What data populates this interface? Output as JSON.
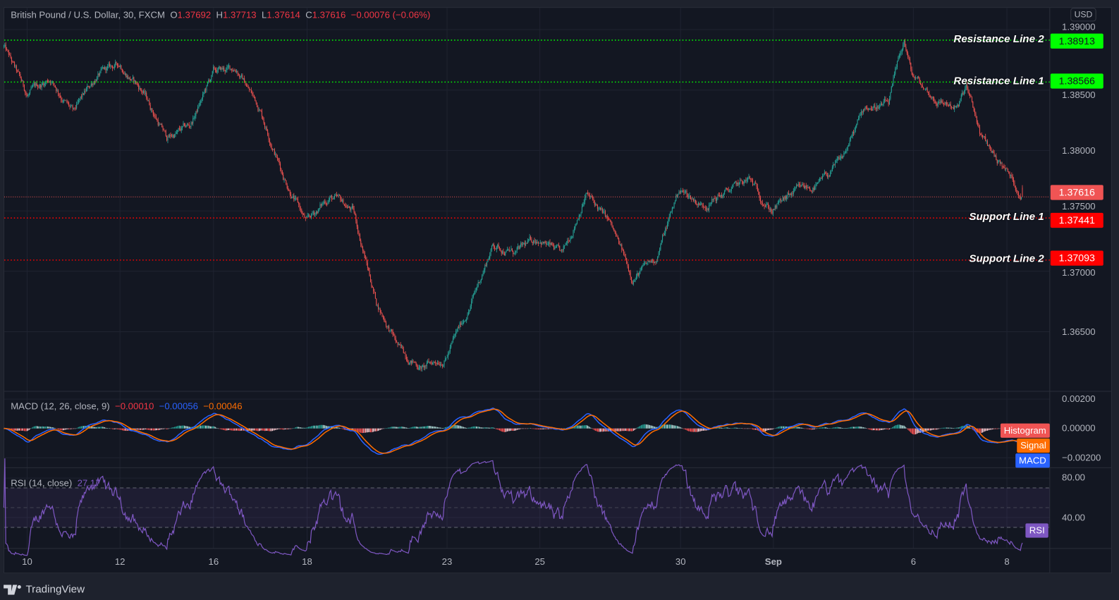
{
  "header": {
    "symbol": "British Pound / U.S. Dollar, 30, FXCM",
    "o_label": "O",
    "o_value": "1.37692",
    "h_label": "H",
    "h_value": "1.37713",
    "l_label": "L",
    "l_value": "1.37614",
    "c_label": "C",
    "c_value": "1.37616",
    "change": "−0.00076 (−0.06%)"
  },
  "currency": "USD",
  "footer": {
    "brand": "TradingView"
  },
  "colors": {
    "up": "#26a69a",
    "down": "#ef5350",
    "resistance": "#00ff00",
    "support": "#ff0000",
    "macd": "#2962ff",
    "signal": "#ff6d00",
    "rsi": "#7e57c2"
  },
  "chart_data": {
    "type": "candlestick",
    "interval": "30",
    "x_ticks": [
      "10",
      "12",
      "16",
      "18",
      "23",
      "25",
      "30",
      "Sep",
      "6",
      "8"
    ],
    "price_axis": {
      "ticks": [
        "1.39000",
        "1.38500",
        "1.38000",
        "1.37500",
        "1.37000",
        "1.36500"
      ],
      "ylim": [
        1.3595,
        1.3925
      ]
    },
    "last_price": "1.37616",
    "close_path": [
      [
        "08-09 12:00",
        1.3886
      ],
      [
        "08-10 00:00",
        1.3845
      ],
      [
        "08-10 12:00",
        1.386
      ],
      [
        "08-11 00:00",
        1.383
      ],
      [
        "08-11 12:00",
        1.3862
      ],
      [
        "08-12 00:00",
        1.3871
      ],
      [
        "08-12 12:00",
        1.3848
      ],
      [
        "08-13 00:00",
        1.381
      ],
      [
        "08-13 12:00",
        1.382
      ],
      [
        "08-16 00:00",
        1.3864
      ],
      [
        "08-16 12:00",
        1.3868
      ],
      [
        "08-17 00:00",
        1.3835
      ],
      [
        "08-17 12:00",
        1.378
      ],
      [
        "08-18 00:00",
        1.374
      ],
      [
        "08-18 12:00",
        1.3762
      ],
      [
        "08-19 00:00",
        1.375
      ],
      [
        "08-19 12:00",
        1.3675
      ],
      [
        "08-20 00:00",
        1.3635
      ],
      [
        "08-20 12:00",
        1.362
      ],
      [
        "08-23 00:00",
        1.363
      ],
      [
        "08-23 12:00",
        1.367
      ],
      [
        "08-24 00:00",
        1.3722
      ],
      [
        "08-24 12:00",
        1.3715
      ],
      [
        "08-25 00:00",
        1.3728
      ],
      [
        "08-25 12:00",
        1.3712
      ],
      [
        "08-26 00:00",
        1.3765
      ],
      [
        "08-26 12:00",
        1.374
      ],
      [
        "08-27 00:00",
        1.3695
      ],
      [
        "08-27 12:00",
        1.371
      ],
      [
        "08-30 00:00",
        1.3768
      ],
      [
        "08-30 12:00",
        1.3755
      ],
      [
        "08-31 00:00",
        1.3765
      ],
      [
        "08-31 12:00",
        1.3775
      ],
      [
        "09-01 00:00",
        1.3751
      ],
      [
        "09-01 12:00",
        1.3765
      ],
      [
        "09-02 00:00",
        1.3771
      ],
      [
        "09-02 12:00",
        1.3792
      ],
      [
        "09-03 00:00",
        1.3836
      ],
      [
        "09-03 12:00",
        1.3838
      ],
      [
        "09-03 20:00",
        1.389
      ],
      [
        "09-06 00:00",
        1.3862
      ],
      [
        "09-06 12:00",
        1.3842
      ],
      [
        "09-07 00:00",
        1.3836
      ],
      [
        "09-07 04:00",
        1.3852
      ],
      [
        "09-07 12:00",
        1.381
      ],
      [
        "09-08 00:00",
        1.3785
      ],
      [
        "09-08 09:00",
        1.37616
      ]
    ],
    "horizontal_lines": [
      {
        "label": "Resistance Line 2",
        "price": 1.38913,
        "price_text": "1.38913",
        "kind": "resistance"
      },
      {
        "label": "Resistance Line 1",
        "price": 1.38566,
        "price_text": "1.38566",
        "kind": "resistance"
      },
      {
        "label": "Support Line 1",
        "price": 1.37441,
        "price_text": "1.37441",
        "kind": "support"
      },
      {
        "label": "Support Line 2",
        "price": 1.37093,
        "price_text": "1.37093",
        "kind": "support"
      }
    ],
    "macd": {
      "title": "MACD (12, 26, close, 9)",
      "histogram_value": "−0.00010",
      "macd_value": "−0.00056",
      "signal_value": "−0.00046",
      "ticks": [
        "0.00200",
        "0.00000",
        "−0.00200"
      ],
      "ylim": [
        -0.0023,
        0.0023
      ],
      "labels": {
        "histogram": "Histogram",
        "signal": "Signal",
        "macd": "MACD"
      }
    },
    "rsi": {
      "title": "RSI (14, close)",
      "value": "27.17",
      "ticks": [
        "80.00",
        "40.00"
      ],
      "bands": [
        30,
        50,
        70
      ],
      "label": "RSI"
    }
  }
}
